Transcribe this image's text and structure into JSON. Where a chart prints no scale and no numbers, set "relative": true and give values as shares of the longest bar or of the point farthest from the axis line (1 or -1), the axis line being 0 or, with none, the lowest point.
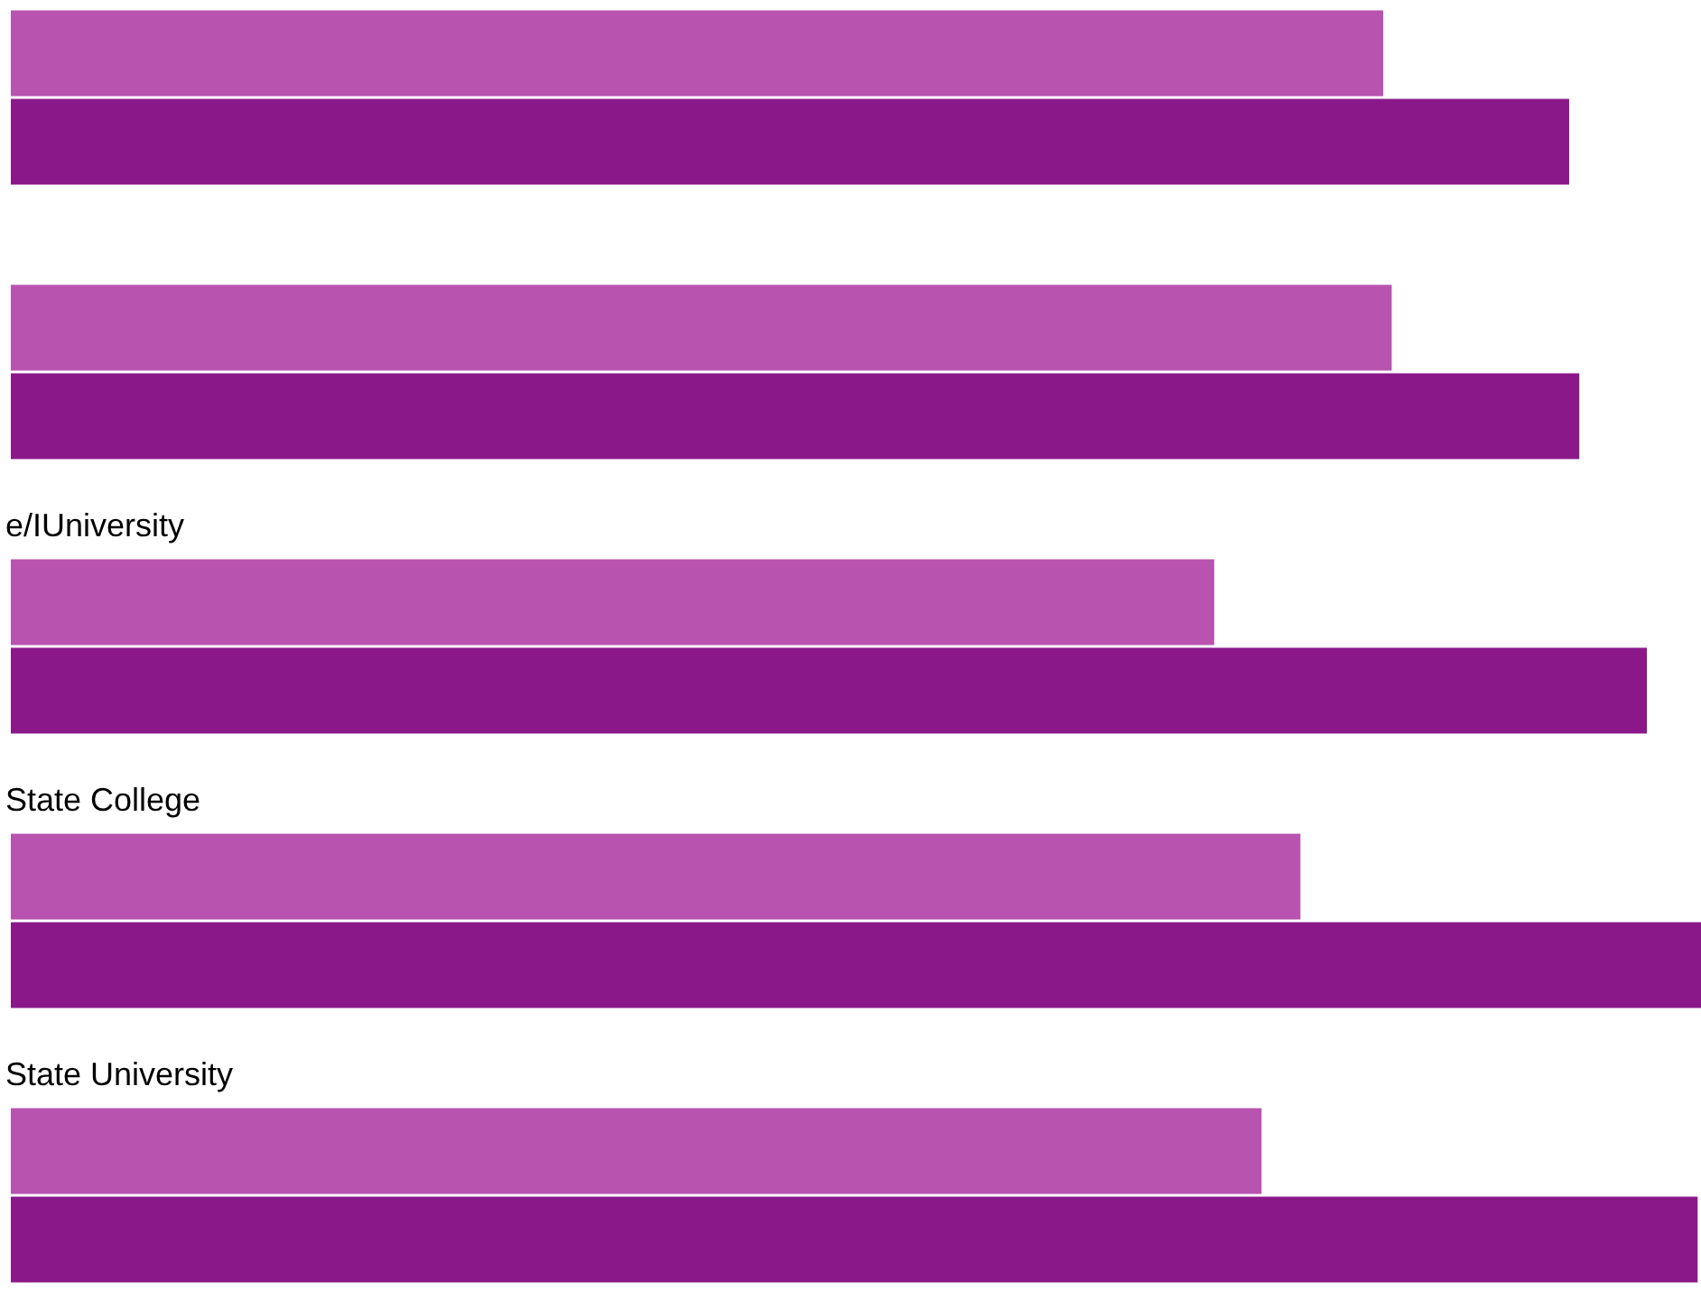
{
  "chart_data": {
    "type": "bar",
    "orientation": "horizontal",
    "relative": true,
    "legend": false,
    "categories": [
      null,
      null,
      "e/IUniversity",
      "State College",
      "State University"
    ],
    "series": [
      {
        "color": "#b853b0",
        "values": [
          0.812,
          0.817,
          0.712,
          0.763,
          0.74
        ]
      },
      {
        "color": "#8a1889",
        "values": [
          0.922,
          0.928,
          0.968,
          1,
          0.998
        ]
      }
    ]
  }
}
